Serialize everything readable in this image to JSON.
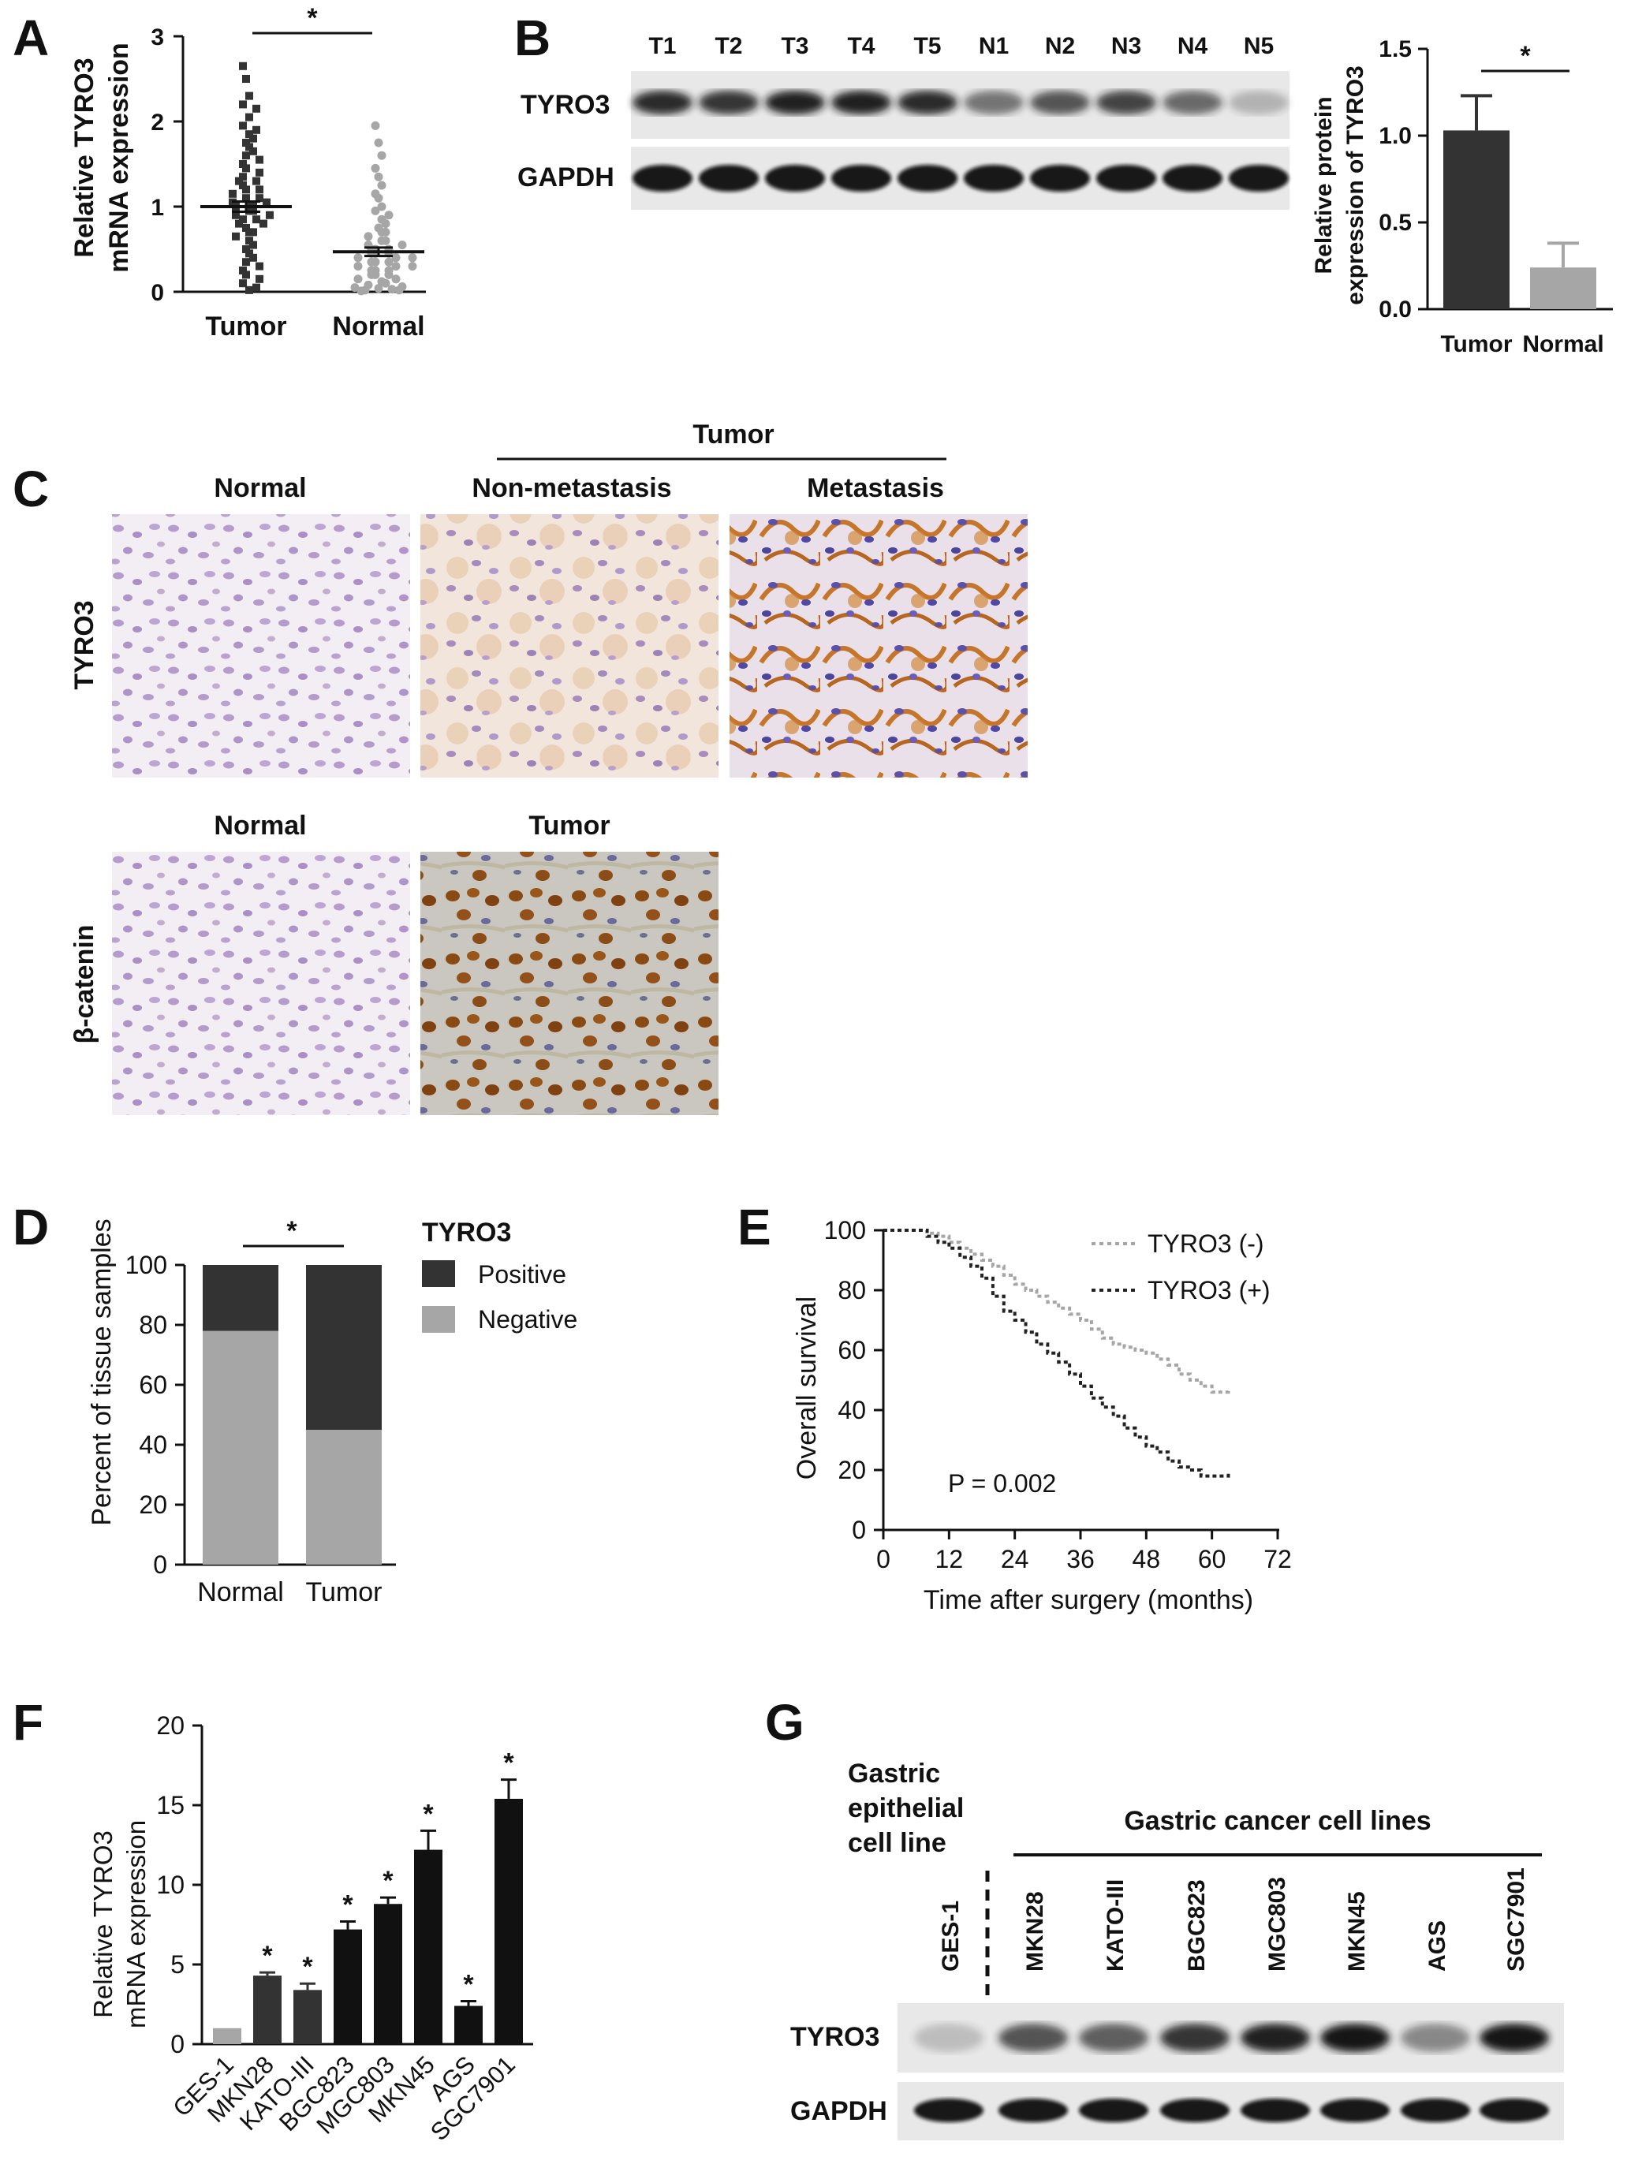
{
  "panels": {
    "A": "A",
    "B": "B",
    "C": "C",
    "D": "D",
    "E": "E",
    "F": "F",
    "G": "G"
  },
  "panel_a": {
    "ylabel_line1": "Relative TYRO3",
    "ylabel_line2": "mRNA expression",
    "categories": [
      "Tumor",
      "Normal"
    ],
    "yticks": [
      "0",
      "1",
      "2",
      "3"
    ],
    "significance": "*"
  },
  "panel_b": {
    "lanes": [
      "T1",
      "T2",
      "T3",
      "T4",
      "T5",
      "N1",
      "N2",
      "N3",
      "N4",
      "N5"
    ],
    "row_labels": [
      "TYRO3",
      "GAPDH"
    ],
    "ylabel_line1": "Relative protein",
    "ylabel_line2": "expression of TYRO3",
    "yticks": [
      "0.0",
      "0.5",
      "1.0",
      "1.5"
    ],
    "categories": [
      "Tumor",
      "Normal"
    ],
    "significance": "*"
  },
  "panel_c": {
    "group_label": "Tumor",
    "row1_cols": [
      "Normal",
      "Non-metastasis",
      "Metastasis"
    ],
    "row1_label": "TYRO3",
    "row2_cols": [
      "Normal",
      "Tumor"
    ],
    "row2_label": "β-catenin"
  },
  "panel_d": {
    "ylabel": "Percent of tissue samples",
    "yticks": [
      "0",
      "20",
      "40",
      "60",
      "80",
      "100"
    ],
    "categories": [
      "Normal",
      "Tumor"
    ],
    "legend_title": "TYRO3",
    "legend": [
      "Positive",
      "Negative"
    ],
    "significance": "*"
  },
  "panel_e": {
    "ylabel": "Overall survival",
    "xlabel": "Time after surgery (months)",
    "yticks": [
      "0",
      "20",
      "40",
      "60",
      "80",
      "100"
    ],
    "xticks": [
      "0",
      "12",
      "24",
      "36",
      "48",
      "60",
      "72"
    ],
    "legend": [
      "TYRO3 (-)",
      "TYRO3 (+)"
    ],
    "pvalue": "P = 0.002"
  },
  "panel_f": {
    "ylabel_line1": "Relative TYRO3",
    "ylabel_line2": "mRNA expression",
    "yticks": [
      "0",
      "5",
      "10",
      "15",
      "20"
    ],
    "categories": [
      "GES-1",
      "MKN28",
      "KATO-III",
      "BGC823",
      "MGC803",
      "MKN45",
      "AGS",
      "SGC7901"
    ],
    "significance": "*"
  },
  "panel_g": {
    "left_header": [
      "Gastric",
      "epithelial",
      "cell line"
    ],
    "right_header": "Gastric cancer cell lines",
    "lanes": [
      "GES-1",
      "MKN28",
      "KATO-III",
      "BGC823",
      "MGC803",
      "MKN45",
      "AGS",
      "SGC7901"
    ],
    "row_labels": [
      "TYRO3",
      "GAPDH"
    ]
  },
  "colors": {
    "dark": "#333333",
    "gray": "#a6a6a6",
    "black": "#111111"
  },
  "chart_data": [
    {
      "panel": "A",
      "type": "scatter",
      "categories": [
        "Tumor",
        "Normal"
      ],
      "series": [
        {
          "name": "Tumor",
          "mean": 1.0,
          "sem": 0.06,
          "values": [
            2.65,
            2.5,
            2.3,
            2.2,
            2.15,
            2.05,
            1.95,
            1.9,
            1.85,
            1.8,
            1.75,
            1.7,
            1.65,
            1.6,
            1.55,
            1.5,
            1.45,
            1.4,
            1.35,
            1.3,
            1.3,
            1.25,
            1.2,
            1.2,
            1.15,
            1.1,
            1.1,
            1.05,
            1.05,
            1.0,
            1.0,
            1.0,
            0.95,
            0.95,
            0.9,
            0.9,
            0.85,
            0.85,
            0.8,
            0.8,
            0.75,
            0.7,
            0.7,
            0.65,
            0.6,
            0.55,
            0.5,
            0.45,
            0.4,
            0.35,
            0.3,
            0.25,
            0.2,
            0.15,
            0.1,
            0.05,
            0.02
          ]
        },
        {
          "name": "Normal",
          "mean": 0.47,
          "sem": 0.05,
          "values": [
            1.95,
            1.75,
            1.6,
            1.45,
            1.35,
            1.25,
            1.15,
            1.1,
            1.0,
            0.95,
            0.9,
            0.85,
            0.8,
            0.75,
            0.7,
            0.7,
            0.65,
            0.6,
            0.6,
            0.55,
            0.55,
            0.5,
            0.5,
            0.5,
            0.45,
            0.45,
            0.45,
            0.4,
            0.4,
            0.4,
            0.35,
            0.35,
            0.35,
            0.3,
            0.3,
            0.3,
            0.25,
            0.25,
            0.25,
            0.2,
            0.2,
            0.2,
            0.15,
            0.15,
            0.12,
            0.1,
            0.08,
            0.06,
            0.05,
            0.04,
            0.03,
            0.02,
            0.02,
            0.01
          ]
        }
      ],
      "ylim": [
        0,
        3
      ]
    },
    {
      "panel": "B",
      "type": "bar",
      "categories": [
        "Tumor",
        "Normal"
      ],
      "values": [
        1.03,
        0.24
      ],
      "errors": [
        0.2,
        0.14
      ],
      "ylim": [
        0,
        1.5
      ]
    },
    {
      "panel": "D",
      "type": "bar",
      "stacked": true,
      "categories": [
        "Normal",
        "Tumor"
      ],
      "series": [
        {
          "name": "Negative",
          "values": [
            78,
            45
          ]
        },
        {
          "name": "Positive",
          "values": [
            22,
            55
          ]
        }
      ],
      "ylim": [
        0,
        100
      ]
    },
    {
      "panel": "E",
      "type": "line",
      "series": [
        {
          "name": "TYRO3 (-)",
          "x": [
            0,
            4,
            8,
            10,
            12,
            14,
            16,
            18,
            20,
            22,
            24,
            26,
            28,
            30,
            32,
            34,
            36,
            38,
            40,
            42,
            44,
            46,
            48,
            50,
            52,
            54,
            56,
            58,
            60,
            62,
            63
          ],
          "y": [
            100,
            100,
            99,
            98,
            96,
            94,
            92,
            90,
            88,
            85,
            82,
            80,
            78,
            76,
            74,
            72,
            70,
            67,
            64,
            62,
            61,
            60,
            59,
            57,
            55,
            52,
            50,
            48,
            46,
            46,
            47
          ]
        },
        {
          "name": "TYRO3 (+)",
          "x": [
            0,
            4,
            8,
            10,
            12,
            14,
            16,
            18,
            20,
            22,
            24,
            26,
            28,
            30,
            32,
            34,
            36,
            38,
            40,
            42,
            44,
            46,
            48,
            50,
            52,
            54,
            56,
            58,
            60,
            62,
            63
          ],
          "y": [
            100,
            100,
            98,
            96,
            94,
            91,
            88,
            84,
            78,
            73,
            70,
            66,
            62,
            59,
            56,
            52,
            48,
            44,
            41,
            38,
            34,
            31,
            28,
            26,
            23,
            21,
            20,
            18,
            18,
            18,
            19
          ]
        }
      ],
      "xlim": [
        0,
        72
      ],
      "ylim": [
        0,
        100
      ]
    },
    {
      "panel": "F",
      "type": "bar",
      "categories": [
        "GES-1",
        "MKN28",
        "KATO-III",
        "BGC823",
        "MGC803",
        "MKN45",
        "AGS",
        "SGC7901"
      ],
      "values": [
        1.0,
        4.3,
        3.4,
        7.2,
        8.8,
        12.2,
        2.4,
        15.4
      ],
      "errors": [
        0.0,
        0.2,
        0.4,
        0.5,
        0.4,
        1.2,
        0.3,
        1.2
      ],
      "ylim": [
        0,
        20
      ]
    }
  ]
}
